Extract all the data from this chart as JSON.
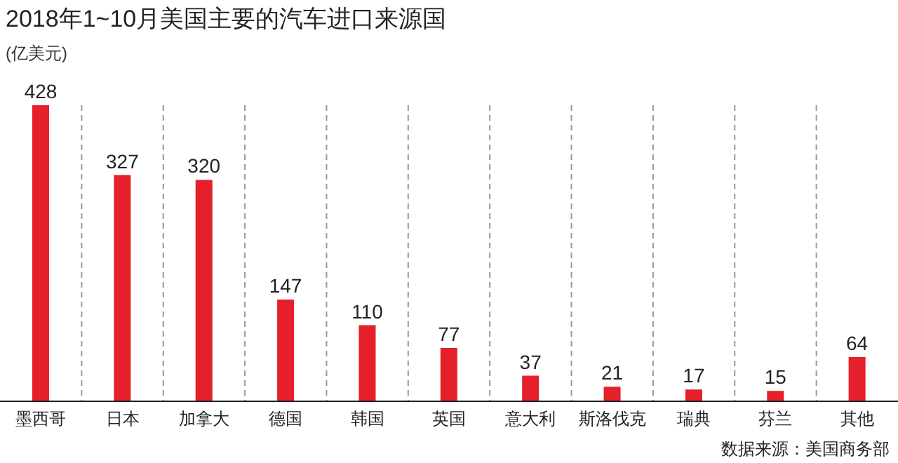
{
  "chart_data": {
    "type": "bar",
    "title": "2018年1~10月美国主要的汽车进口来源国",
    "ylabel": "(亿美元)",
    "categories": [
      "墨西哥",
      "日本",
      "加拿大",
      "德国",
      "韩国",
      "英国",
      "意大利",
      "斯洛伐克",
      "瑞典",
      "芬兰",
      "其他"
    ],
    "values": [
      428,
      327,
      320,
      147,
      110,
      77,
      37,
      21,
      17,
      15,
      64
    ],
    "color": "#e5202a",
    "data_labels": true,
    "grid": "x",
    "annotations": [
      "数据来源：美国商务部"
    ]
  }
}
